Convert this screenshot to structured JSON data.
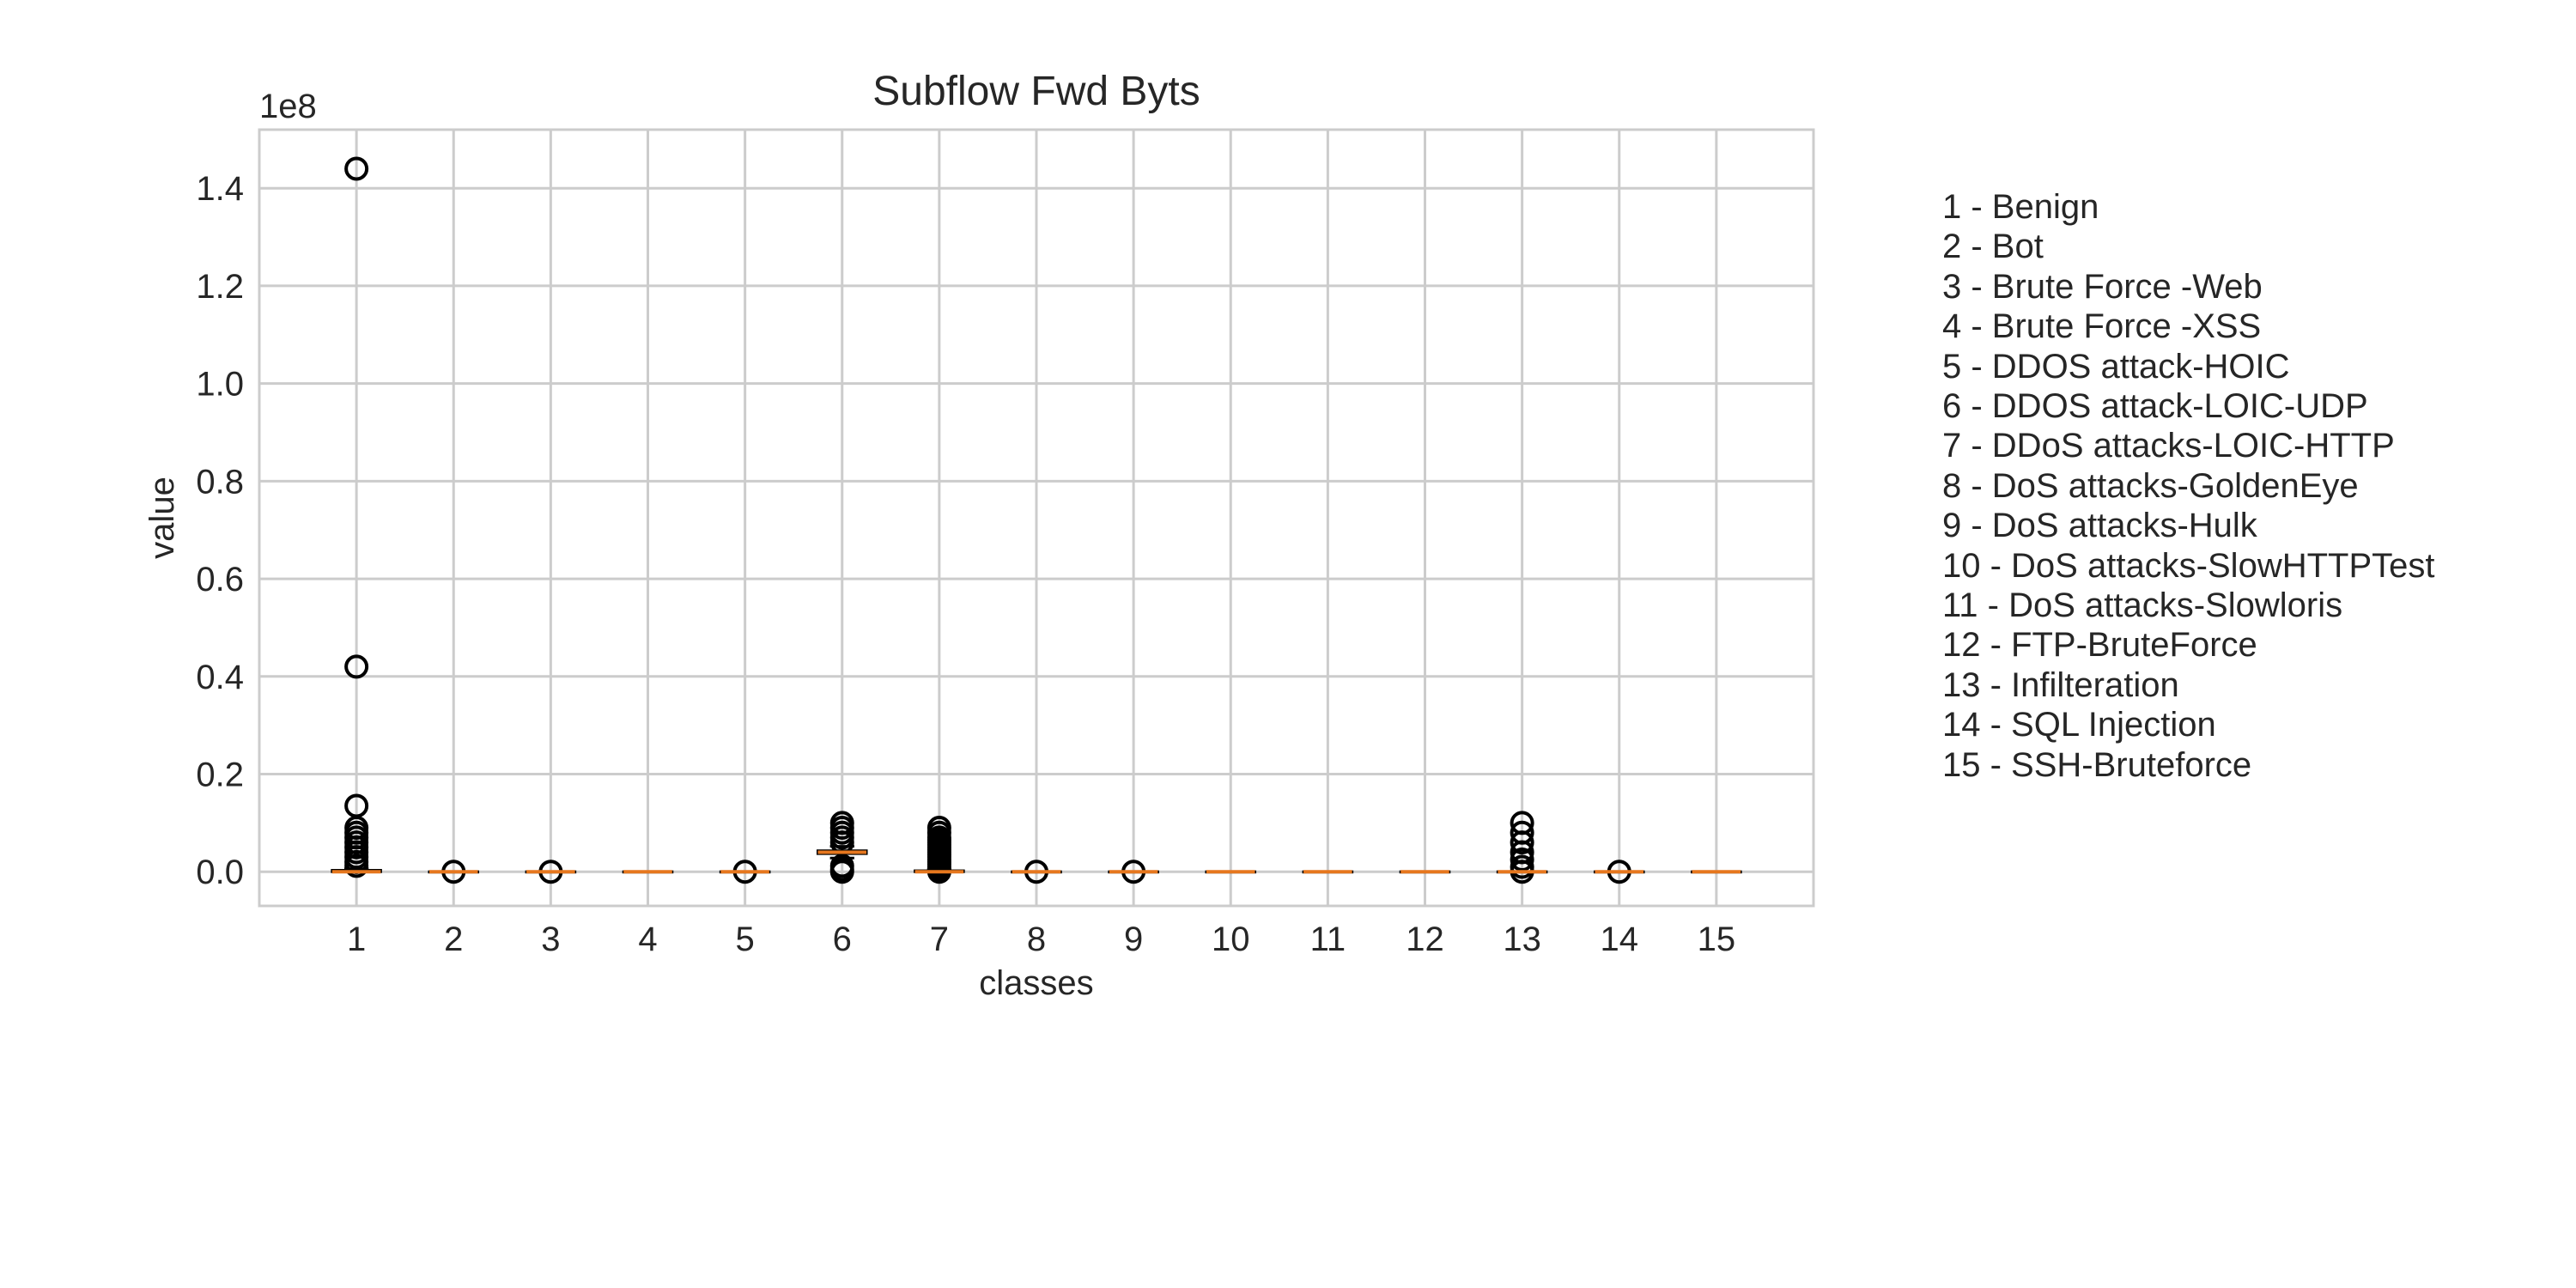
{
  "chart_data": {
    "type": "box",
    "title": "Subflow Fwd Byts",
    "xlabel": "classes",
    "ylabel": "value",
    "y_scale_label": "1e8",
    "y_scale_factor": 100000000,
    "ylim": [
      -0.07,
      1.52
    ],
    "yticks": [
      0.0,
      0.2,
      0.4,
      0.6,
      0.8,
      1.0,
      1.2,
      1.4
    ],
    "ytick_labels": [
      "0.0",
      "0.2",
      "0.4",
      "0.6",
      "0.8",
      "1.0",
      "1.2",
      "1.4"
    ],
    "categories": [
      "1",
      "2",
      "3",
      "4",
      "5",
      "6",
      "7",
      "8",
      "9",
      "10",
      "11",
      "12",
      "13",
      "14",
      "15"
    ],
    "grid": true,
    "colors": {
      "median": "#e6771e",
      "box": "#000000",
      "grid": "#cccccc",
      "spine": "#cccccc",
      "outlier": "#000000"
    },
    "boxes": [
      {
        "category": "1",
        "q1": 0.0,
        "median": 0.0,
        "q3": 0.003,
        "whisker_low": 0.0,
        "whisker_high": 0.006,
        "fliers": [
          1.44,
          0.42,
          0.135,
          0.09,
          0.08,
          0.07,
          0.06,
          0.05,
          0.04,
          0.03,
          0.02,
          0.012
        ]
      },
      {
        "category": "2",
        "q1": 0.0,
        "median": 0.0,
        "q3": 0.0,
        "whisker_low": 0.0,
        "whisker_high": 0.0,
        "fliers": [
          0.0
        ]
      },
      {
        "category": "3",
        "q1": 0.0,
        "median": 0.0,
        "q3": 0.0,
        "whisker_low": 0.0,
        "whisker_high": 0.0,
        "fliers": [
          0.0
        ]
      },
      {
        "category": "4",
        "q1": 0.0,
        "median": 0.0,
        "q3": 0.0,
        "whisker_low": 0.0,
        "whisker_high": 0.0,
        "fliers": []
      },
      {
        "category": "5",
        "q1": 0.0,
        "median": 0.0,
        "q3": 0.0,
        "whisker_low": 0.0,
        "whisker_high": 0.0,
        "fliers": [
          0.0
        ]
      },
      {
        "category": "6",
        "q1": 0.037,
        "median": 0.04,
        "q3": 0.043,
        "whisker_low": 0.028,
        "whisker_high": 0.052,
        "fliers": [
          0.1,
          0.09,
          0.08,
          0.07,
          0.06,
          0.012,
          0.005,
          0.0
        ]
      },
      {
        "category": "7",
        "q1": 0.0,
        "median": 0.0,
        "q3": 0.002,
        "whisker_low": 0.0,
        "whisker_high": 0.004,
        "fliers": [
          0.09,
          0.08,
          0.07,
          0.065,
          0.06,
          0.055,
          0.05,
          0.045,
          0.04,
          0.035,
          0.03,
          0.025,
          0.02,
          0.015,
          0.01,
          0.005,
          0.0
        ]
      },
      {
        "category": "8",
        "q1": 0.0,
        "median": 0.0,
        "q3": 0.0,
        "whisker_low": 0.0,
        "whisker_high": 0.0,
        "fliers": [
          0.0
        ]
      },
      {
        "category": "9",
        "q1": 0.0,
        "median": 0.0,
        "q3": 0.0,
        "whisker_low": 0.0,
        "whisker_high": 0.0,
        "fliers": [
          0.0
        ]
      },
      {
        "category": "10",
        "q1": 0.0,
        "median": 0.0,
        "q3": 0.0,
        "whisker_low": 0.0,
        "whisker_high": 0.0,
        "fliers": []
      },
      {
        "category": "11",
        "q1": 0.0,
        "median": 0.0,
        "q3": 0.0,
        "whisker_low": 0.0,
        "whisker_high": 0.0,
        "fliers": []
      },
      {
        "category": "12",
        "q1": 0.0,
        "median": 0.0,
        "q3": 0.0,
        "whisker_low": 0.0,
        "whisker_high": 0.0,
        "fliers": []
      },
      {
        "category": "13",
        "q1": 0.0,
        "median": 0.0,
        "q3": 0.0,
        "whisker_low": 0.0,
        "whisker_high": 0.0,
        "fliers": [
          0.1,
          0.08,
          0.06,
          0.04,
          0.025,
          0.01,
          0.0
        ]
      },
      {
        "category": "14",
        "q1": 0.0,
        "median": 0.0,
        "q3": 0.0,
        "whisker_low": 0.0,
        "whisker_high": 0.0,
        "fliers": [
          0.0
        ]
      },
      {
        "category": "15",
        "q1": 0.0,
        "median": 0.0,
        "q3": 0.0,
        "whisker_low": 0.0,
        "whisker_high": 0.0,
        "fliers": []
      }
    ],
    "legend_placement": "right",
    "legend_entries": [
      "1 - Benign",
      "2 - Bot",
      "3 - Brute Force -Web",
      "4 - Brute Force -XSS",
      "5 - DDOS attack-HOIC",
      "6 - DDOS attack-LOIC-UDP",
      "7 - DDoS attacks-LOIC-HTTP",
      "8 - DoS attacks-GoldenEye",
      "9 - DoS attacks-Hulk",
      "10 - DoS attacks-SlowHTTPTest",
      "11 - DoS attacks-Slowloris",
      "12 - FTP-BruteForce",
      "13 - Infilteration",
      "14 - SQL Injection",
      "15 - SSH-Bruteforce"
    ]
  }
}
